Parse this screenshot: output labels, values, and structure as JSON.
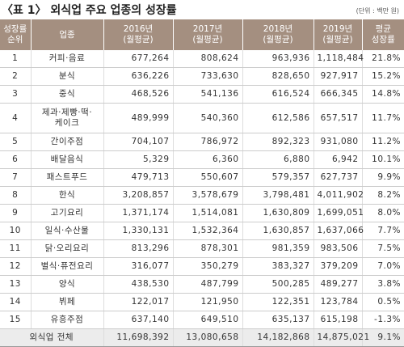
{
  "header": {
    "title": "〈표 1〉 외식업 주요 업종의 성장률",
    "unit": "(단위 : 백만 원)"
  },
  "table": {
    "columns": [
      "성장률\n순위",
      "업종",
      "2016년\n(월평균)",
      "2017년\n(월평균)",
      "2018년\n(월평균)",
      "2019년\n(월평균)",
      "평균\n성장률"
    ],
    "rows": [
      [
        "1",
        "커피·음료",
        "677,264",
        "808,624",
        "963,936",
        "1,118,484",
        "21.8%"
      ],
      [
        "2",
        "분식",
        "636,226",
        "733,630",
        "828,650",
        "927,917",
        "15.2%"
      ],
      [
        "3",
        "중식",
        "468,526",
        "541,136",
        "616,524",
        "666,345",
        "14.8%"
      ],
      [
        "4",
        "제과·제빵·떡·\n케이크",
        "489,999",
        "540,360",
        "612,586",
        "657,517",
        "11.7%"
      ],
      [
        "5",
        "간이주점",
        "704,107",
        "786,972",
        "892,323",
        "931,080",
        "11.2%"
      ],
      [
        "6",
        "배달음식",
        "5,329",
        "6,360",
        "6,880",
        "6,942",
        "10.1%"
      ],
      [
        "7",
        "패스트푸드",
        "479,713",
        "550,607",
        "579,357",
        "627,737",
        "9.9%"
      ],
      [
        "8",
        "한식",
        "3,208,857",
        "3,578,679",
        "3,798,481",
        "4,011,902",
        "8.2%"
      ],
      [
        "9",
        "고기요리",
        "1,371,174",
        "1,514,081",
        "1,630,809",
        "1,699,051",
        "8.0%"
      ],
      [
        "10",
        "일식·수산물",
        "1,330,131",
        "1,532,364",
        "1,630,857",
        "1,637,066",
        "7.7%"
      ],
      [
        "11",
        "닭·오리요리",
        "813,296",
        "878,301",
        "981,359",
        "983,506",
        "7.5%"
      ],
      [
        "12",
        "별식·퓨전요리",
        "316,077",
        "350,279",
        "383,327",
        "379,209",
        "7.0%"
      ],
      [
        "13",
        "양식",
        "438,530",
        "487,799",
        "500,285",
        "489,277",
        "3.8%"
      ],
      [
        "14",
        "뷔페",
        "122,017",
        "121,950",
        "122,351",
        "123,784",
        "0.5%"
      ],
      [
        "15",
        "유흥주점",
        "637,140",
        "649,510",
        "635,137",
        "615,198",
        "-1.3%"
      ]
    ],
    "total": [
      "외식업 전체",
      "11,698,392",
      "13,080,658",
      "14,182,868",
      "14,875,021",
      "9.1%"
    ]
  }
}
